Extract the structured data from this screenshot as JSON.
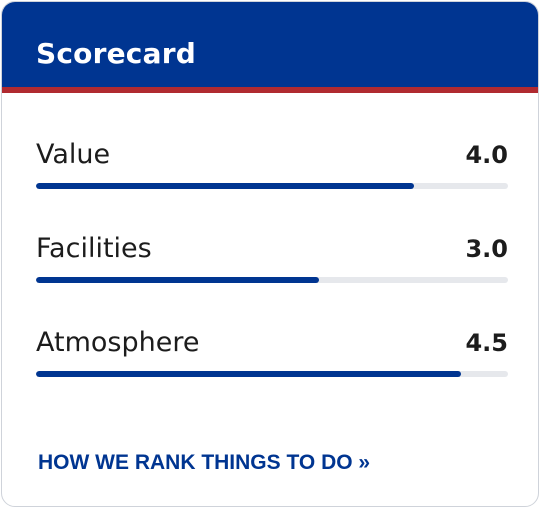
{
  "scorecard": {
    "title": "Scorecard",
    "max_score": 5,
    "rows": [
      {
        "label": "Value",
        "score": "4.0",
        "score_number": 4.0
      },
      {
        "label": "Facilities",
        "score": "3.0",
        "score_number": 3.0
      },
      {
        "label": "Atmosphere",
        "score": "4.5",
        "score_number": 4.5
      }
    ],
    "link_label": "HOW WE RANK THINGS TO DO »"
  },
  "colors": {
    "header_bg": "#003591",
    "header_stripe": "#b02a30",
    "bar_fill": "#003591",
    "bar_track": "#e6e8ec",
    "link": "#003591"
  }
}
